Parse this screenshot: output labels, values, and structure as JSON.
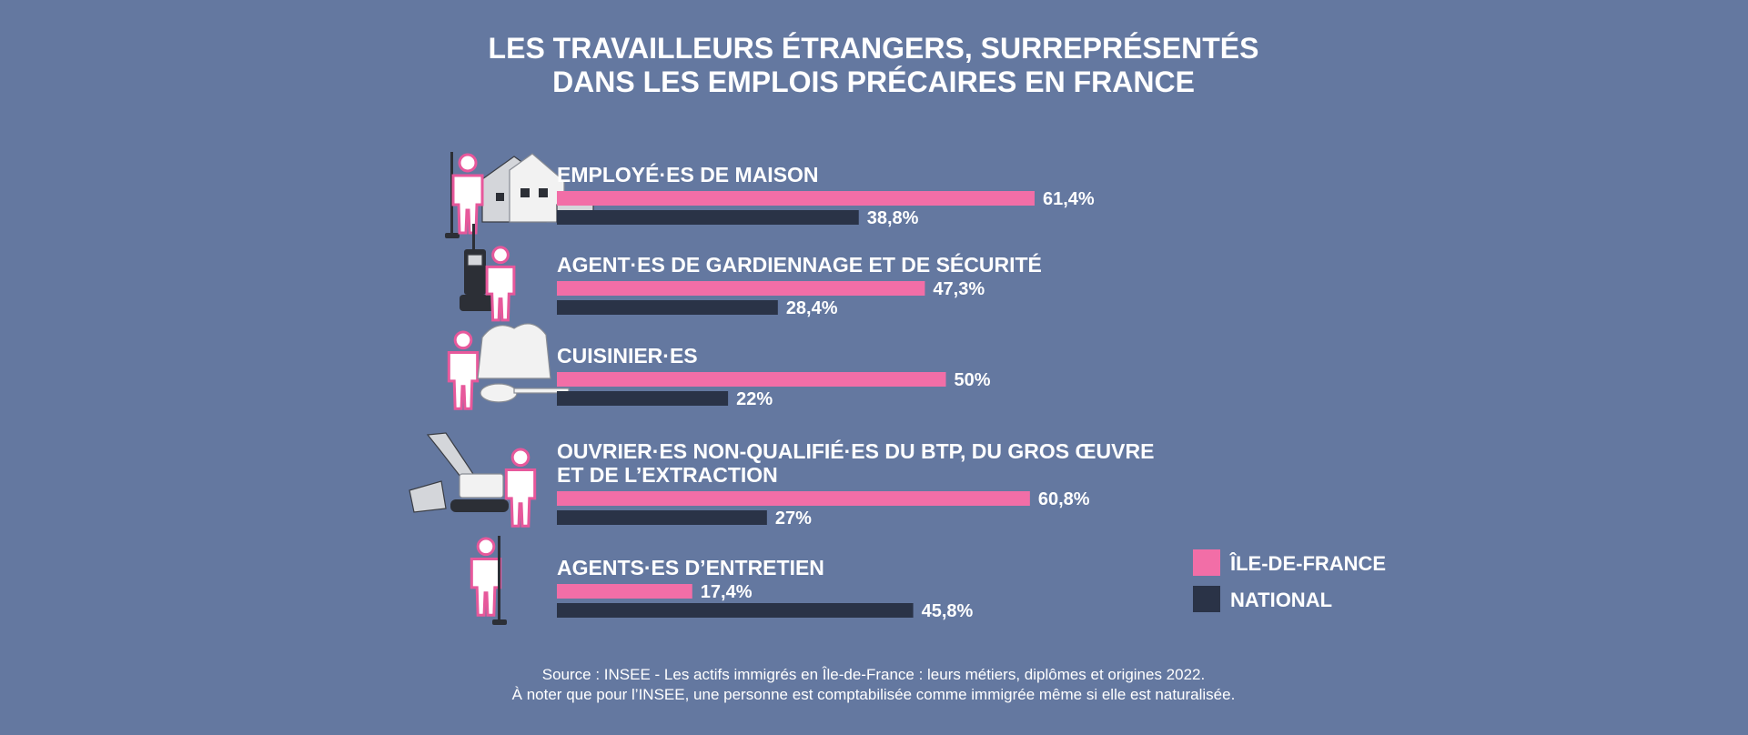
{
  "title_lines": [
    "LES TRAVAILLEURS ÉTRANGERS, SURREPRÉSENTÉS",
    "DANS LES EMPLOIS PRÉCAIRES EN FRANCE"
  ],
  "colors": {
    "background": "#6478a0",
    "ile_de_france": "#f26ea7",
    "national": "#2a3347",
    "person_outline": "#e7589b"
  },
  "legend": {
    "position": "right",
    "items": [
      {
        "label": "ÎLE-DE-FRANCE",
        "color": "#f26ea7"
      },
      {
        "label": "NATIONAL",
        "color": "#2a3347"
      }
    ]
  },
  "chart_data": {
    "type": "bar",
    "orientation": "horizontal",
    "categories": [
      {
        "lines": [
          "EMPLOYÉ·ES DE MAISON"
        ],
        "icon": "house-icon"
      },
      {
        "lines": [
          "AGENT·ES DE GARDIENNAGE ET DE SÉCURITÉ"
        ],
        "icon": "walkie-talkie-icon"
      },
      {
        "lines": [
          "CUISINIER·ES"
        ],
        "icon": "chef-hat-icon"
      },
      {
        "lines": [
          "OUVRIER·ES NON-QUALIFIÉ·ES DU BTP, DU GROS ŒUVRE",
          "ET DE L’EXTRACTION"
        ],
        "icon": "excavator-icon"
      },
      {
        "lines": [
          "AGENTS·ES D’ENTRETIEN"
        ],
        "icon": "broom-icon"
      }
    ],
    "series": [
      {
        "name": "ÎLE-DE-FRANCE",
        "values": [
          61.4,
          47.3,
          50,
          60.8,
          17.4
        ],
        "labels": [
          "61,4%",
          "47,3%",
          "50%",
          "60,8%",
          "17,4%"
        ]
      },
      {
        "name": "NATIONAL",
        "values": [
          38.8,
          28.4,
          22,
          27,
          45.8
        ],
        "labels": [
          "38,8%",
          "28,4%",
          "22%",
          "27%",
          "45,8%"
        ]
      }
    ],
    "xlim": [
      0,
      70
    ],
    "grid": false
  },
  "source_lines": [
    "Source : INSEE - Les actifs immigrés en Île-de-France : leurs métiers, diplômes et origines 2022.",
    "À noter que pour l’INSEE, une personne est comptabilisée comme immigrée même si elle est naturalisée."
  ]
}
